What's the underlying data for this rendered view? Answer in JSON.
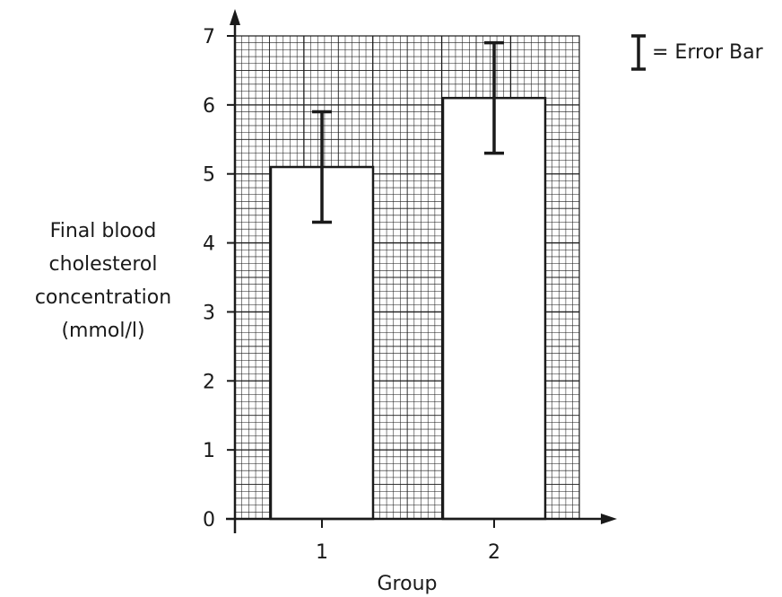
{
  "chart_data": {
    "type": "bar",
    "title": "",
    "xlabel": "Group",
    "ylabel_lines": [
      "Final blood",
      "cholesterol",
      "concentration",
      "(mmol/l)"
    ],
    "categories": [
      "1",
      "2"
    ],
    "values": [
      5.1,
      6.1
    ],
    "error_bars": [
      {
        "low": 4.3,
        "high": 5.9
      },
      {
        "low": 5.3,
        "high": 6.9
      }
    ],
    "ylim": [
      0,
      7
    ],
    "yticks": [
      0,
      1,
      2,
      3,
      4,
      5,
      6,
      7
    ],
    "grid": true,
    "legend": {
      "text": "= Error Bar",
      "position": "top-right"
    },
    "colors": {
      "bar_fill": "#ffffff",
      "bar_stroke": "#1a1a1a",
      "grid": "#1a1a1a",
      "error_bar": "#1a1a1a"
    }
  }
}
